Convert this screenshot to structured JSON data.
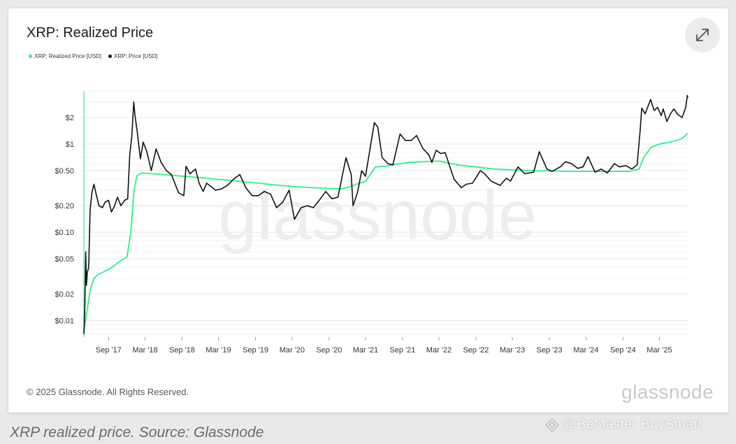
{
  "chart_data": {
    "type": "line",
    "title": "XRP: Realized Price",
    "yscale": "log",
    "grid": true,
    "legend_position": "top-left",
    "x_range": [
      "2017-05-01",
      "2025-07-20"
    ],
    "ylim": [
      0.0065,
      4.0
    ],
    "y_ticks": [
      {
        "value": 0.01,
        "label": "$0.01"
      },
      {
        "value": 0.02,
        "label": "$0.02"
      },
      {
        "value": 0.05,
        "label": "$0.05"
      },
      {
        "value": 0.1,
        "label": "$0.10"
      },
      {
        "value": 0.2,
        "label": "$0.20"
      },
      {
        "value": 0.5,
        "label": "$0.50"
      },
      {
        "value": 1,
        "label": "$1"
      },
      {
        "value": 2,
        "label": "$2"
      }
    ],
    "x_ticks": [
      {
        "date": "2017-09-01",
        "label": "Sep '17"
      },
      {
        "date": "2018-03-01",
        "label": "Mar '18"
      },
      {
        "date": "2018-09-01",
        "label": "Sep '18"
      },
      {
        "date": "2019-03-01",
        "label": "Mar '19"
      },
      {
        "date": "2019-09-01",
        "label": "Sep '19"
      },
      {
        "date": "2020-03-01",
        "label": "Mar '20"
      },
      {
        "date": "2020-09-01",
        "label": "Sep '20"
      },
      {
        "date": "2021-03-01",
        "label": "Mar '21"
      },
      {
        "date": "2021-09-01",
        "label": "Sep '21"
      },
      {
        "date": "2022-03-01",
        "label": "Mar '22"
      },
      {
        "date": "2022-09-01",
        "label": "Sep '22"
      },
      {
        "date": "2023-03-01",
        "label": "Mar '23"
      },
      {
        "date": "2023-09-01",
        "label": "Sep '23"
      },
      {
        "date": "2024-03-01",
        "label": "Mar '24"
      },
      {
        "date": "2024-09-01",
        "label": "Sep '24"
      },
      {
        "date": "2025-03-01",
        "label": "Mar '25"
      }
    ],
    "series": [
      {
        "name": "XRP: Realized Price [USD]",
        "color": "#2ef08a",
        "points": [
          [
            "2017-05-01",
            0.0075
          ],
          [
            "2017-05-15",
            0.012
          ],
          [
            "2017-06-01",
            0.022
          ],
          [
            "2017-06-20",
            0.03
          ],
          [
            "2017-07-10",
            0.033
          ],
          [
            "2017-08-01",
            0.035
          ],
          [
            "2017-09-01",
            0.038
          ],
          [
            "2017-10-01",
            0.042
          ],
          [
            "2017-11-01",
            0.048
          ],
          [
            "2017-12-01",
            0.052
          ],
          [
            "2017-12-20",
            0.1
          ],
          [
            "2018-01-05",
            0.3
          ],
          [
            "2018-01-20",
            0.44
          ],
          [
            "2018-02-15",
            0.47
          ],
          [
            "2018-06-01",
            0.45
          ],
          [
            "2019-01-01",
            0.41
          ],
          [
            "2019-06-01",
            0.38
          ],
          [
            "2020-01-01",
            0.34
          ],
          [
            "2020-06-01",
            0.32
          ],
          [
            "2020-11-01",
            0.31
          ],
          [
            "2020-12-15",
            0.33
          ],
          [
            "2021-03-01",
            0.38
          ],
          [
            "2021-04-20",
            0.55
          ],
          [
            "2021-06-01",
            0.56
          ],
          [
            "2021-10-01",
            0.62
          ],
          [
            "2022-03-01",
            0.64
          ],
          [
            "2022-06-01",
            0.58
          ],
          [
            "2022-12-01",
            0.52
          ],
          [
            "2023-06-01",
            0.5
          ],
          [
            "2024-01-01",
            0.49
          ],
          [
            "2024-10-01",
            0.49
          ],
          [
            "2024-11-20",
            0.52
          ],
          [
            "2024-12-15",
            0.72
          ],
          [
            "2025-01-20",
            0.92
          ],
          [
            "2025-03-01",
            1.0
          ],
          [
            "2025-05-01",
            1.06
          ],
          [
            "2025-06-20",
            1.15
          ],
          [
            "2025-07-20",
            1.32
          ]
        ]
      },
      {
        "name": "XRP: Price [USD]",
        "color": "#111111",
        "points": [
          [
            "2017-05-01",
            0.007
          ],
          [
            "2017-05-05",
            0.012
          ],
          [
            "2017-05-10",
            0.06
          ],
          [
            "2017-05-14",
            0.025
          ],
          [
            "2017-05-18",
            0.035
          ],
          [
            "2017-05-25",
            0.04
          ],
          [
            "2017-06-01",
            0.18
          ],
          [
            "2017-06-10",
            0.28
          ],
          [
            "2017-06-20",
            0.35
          ],
          [
            "2017-07-01",
            0.27
          ],
          [
            "2017-07-15",
            0.2
          ],
          [
            "2017-08-01",
            0.19
          ],
          [
            "2017-08-15",
            0.22
          ],
          [
            "2017-09-01",
            0.23
          ],
          [
            "2017-09-15",
            0.17
          ],
          [
            "2017-10-01",
            0.2
          ],
          [
            "2017-10-15",
            0.25
          ],
          [
            "2017-11-01",
            0.2
          ],
          [
            "2017-11-20",
            0.23
          ],
          [
            "2017-12-05",
            0.24
          ],
          [
            "2017-12-15",
            0.75
          ],
          [
            "2017-12-25",
            1.2
          ],
          [
            "2018-01-04",
            3.0
          ],
          [
            "2018-01-10",
            2.1
          ],
          [
            "2018-01-20",
            1.45
          ],
          [
            "2018-02-06",
            0.68
          ],
          [
            "2018-02-20",
            1.05
          ],
          [
            "2018-03-10",
            0.82
          ],
          [
            "2018-04-01",
            0.5
          ],
          [
            "2018-04-25",
            0.88
          ],
          [
            "2018-05-20",
            0.62
          ],
          [
            "2018-06-15",
            0.5
          ],
          [
            "2018-07-10",
            0.45
          ],
          [
            "2018-08-15",
            0.28
          ],
          [
            "2018-09-10",
            0.26
          ],
          [
            "2018-09-21",
            0.56
          ],
          [
            "2018-10-10",
            0.46
          ],
          [
            "2018-11-07",
            0.52
          ],
          [
            "2018-11-25",
            0.36
          ],
          [
            "2018-12-15",
            0.29
          ],
          [
            "2019-01-01",
            0.36
          ],
          [
            "2019-02-15",
            0.3
          ],
          [
            "2019-03-15",
            0.31
          ],
          [
            "2019-04-15",
            0.34
          ],
          [
            "2019-05-15",
            0.4
          ],
          [
            "2019-06-15",
            0.45
          ],
          [
            "2019-07-15",
            0.32
          ],
          [
            "2019-08-15",
            0.26
          ],
          [
            "2019-09-15",
            0.26
          ],
          [
            "2019-10-15",
            0.29
          ],
          [
            "2019-11-15",
            0.27
          ],
          [
            "2019-12-15",
            0.19
          ],
          [
            "2020-01-15",
            0.22
          ],
          [
            "2020-02-15",
            0.3
          ],
          [
            "2020-03-13",
            0.14
          ],
          [
            "2020-04-15",
            0.19
          ],
          [
            "2020-05-15",
            0.2
          ],
          [
            "2020-06-15",
            0.19
          ],
          [
            "2020-07-20",
            0.24
          ],
          [
            "2020-08-15",
            0.29
          ],
          [
            "2020-09-15",
            0.24
          ],
          [
            "2020-10-15",
            0.25
          ],
          [
            "2020-11-24",
            0.7
          ],
          [
            "2020-12-20",
            0.45
          ],
          [
            "2020-12-29",
            0.2
          ],
          [
            "2021-01-20",
            0.28
          ],
          [
            "2021-02-10",
            0.5
          ],
          [
            "2021-03-01",
            0.43
          ],
          [
            "2021-04-14",
            1.75
          ],
          [
            "2021-05-01",
            1.55
          ],
          [
            "2021-05-23",
            0.7
          ],
          [
            "2021-06-20",
            0.6
          ],
          [
            "2021-07-15",
            0.58
          ],
          [
            "2021-08-20",
            1.3
          ],
          [
            "2021-09-15",
            1.1
          ],
          [
            "2021-10-15",
            1.1
          ],
          [
            "2021-11-10",
            1.25
          ],
          [
            "2021-12-10",
            0.9
          ],
          [
            "2022-01-10",
            0.75
          ],
          [
            "2022-01-25",
            0.62
          ],
          [
            "2022-02-15",
            0.85
          ],
          [
            "2022-03-10",
            0.78
          ],
          [
            "2022-04-01",
            0.8
          ],
          [
            "2022-05-15",
            0.4
          ],
          [
            "2022-06-20",
            0.32
          ],
          [
            "2022-07-15",
            0.35
          ],
          [
            "2022-08-15",
            0.36
          ],
          [
            "2022-09-23",
            0.5
          ],
          [
            "2022-10-15",
            0.46
          ],
          [
            "2022-11-15",
            0.38
          ],
          [
            "2022-12-30",
            0.34
          ],
          [
            "2023-01-30",
            0.41
          ],
          [
            "2023-02-20",
            0.38
          ],
          [
            "2023-03-29",
            0.55
          ],
          [
            "2023-05-01",
            0.46
          ],
          [
            "2023-06-15",
            0.48
          ],
          [
            "2023-07-13",
            0.82
          ],
          [
            "2023-08-20",
            0.52
          ],
          [
            "2023-09-15",
            0.49
          ],
          [
            "2023-10-25",
            0.55
          ],
          [
            "2023-11-20",
            0.63
          ],
          [
            "2023-12-20",
            0.6
          ],
          [
            "2024-01-20",
            0.53
          ],
          [
            "2024-02-15",
            0.55
          ],
          [
            "2024-03-11",
            0.72
          ],
          [
            "2024-04-15",
            0.48
          ],
          [
            "2024-05-15",
            0.52
          ],
          [
            "2024-06-15",
            0.47
          ],
          [
            "2024-07-20",
            0.6
          ],
          [
            "2024-08-15",
            0.55
          ],
          [
            "2024-09-15",
            0.57
          ],
          [
            "2024-10-15",
            0.52
          ],
          [
            "2024-11-10",
            0.58
          ],
          [
            "2024-11-25",
            1.4
          ],
          [
            "2024-12-03",
            2.55
          ],
          [
            "2024-12-20",
            2.2
          ],
          [
            "2025-01-16",
            3.2
          ],
          [
            "2025-02-03",
            2.4
          ],
          [
            "2025-02-20",
            2.6
          ],
          [
            "2025-03-10",
            2.1
          ],
          [
            "2025-03-20",
            2.5
          ],
          [
            "2025-04-07",
            1.8
          ],
          [
            "2025-04-25",
            2.2
          ],
          [
            "2025-05-12",
            2.5
          ],
          [
            "2025-06-01",
            2.15
          ],
          [
            "2025-06-22",
            2.0
          ],
          [
            "2025-07-10",
            2.6
          ],
          [
            "2025-07-18",
            3.55
          ],
          [
            "2025-07-20",
            3.35
          ]
        ]
      }
    ],
    "background_watermark": "glassnode"
  },
  "header": {
    "title": "XRP: Realized Price",
    "expand_icon": "expand-arrows-icon"
  },
  "legend": {
    "items": [
      {
        "label": "XRP: Realized Price [USD]",
        "color": "#2ef08a"
      },
      {
        "label": "XRP: Price [USD]",
        "color": "#111111"
      }
    ]
  },
  "footer": {
    "copyright": "© 2025 Glassnode. All Rights Reserved.",
    "logo_text": "glassnode"
  },
  "caption": "XRP realized price. Source: Glassnode",
  "source_watermark": "@BeMaster BuySmart"
}
